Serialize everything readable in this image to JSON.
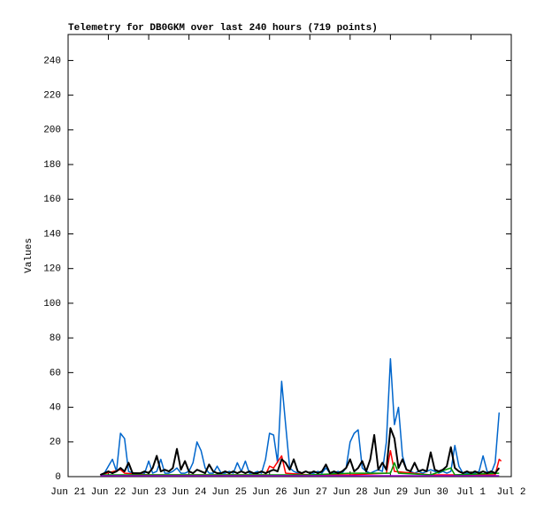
{
  "chart_data": {
    "type": "line",
    "title": "Telemetry for DB0GKM over last 240 hours (719 points)",
    "y_label": "Values",
    "x": [
      0.8,
      0.9,
      1.0,
      1.1,
      1.2,
      1.3,
      1.4,
      1.5,
      1.6,
      1.7,
      1.8,
      1.9,
      2.0,
      2.1,
      2.2,
      2.3,
      2.4,
      2.5,
      2.6,
      2.7,
      2.8,
      2.9,
      3.0,
      3.1,
      3.2,
      3.3,
      3.4,
      3.5,
      3.6,
      3.7,
      3.8,
      3.9,
      4.0,
      4.1,
      4.2,
      4.3,
      4.4,
      4.5,
      4.6,
      4.7,
      4.8,
      4.9,
      5.0,
      5.1,
      5.2,
      5.3,
      5.4,
      5.5,
      5.6,
      5.7,
      5.8,
      5.9,
      6.0,
      6.1,
      6.2,
      6.3,
      6.4,
      6.5,
      6.6,
      6.7,
      6.8,
      6.9,
      7.0,
      7.1,
      7.2,
      7.3,
      7.4,
      7.5,
      7.6,
      7.7,
      7.8,
      7.9,
      8.0,
      8.1,
      8.2,
      8.3,
      8.4,
      8.5,
      8.6,
      8.7,
      8.8,
      8.9,
      9.0,
      9.1,
      9.2,
      9.3,
      9.4,
      9.5,
      9.6,
      9.7,
      9.8,
      9.9,
      10.0,
      10.1,
      10.2,
      10.3,
      10.4,
      10.5,
      10.6,
      10.7
    ],
    "series": [
      {
        "color": "#0066cc",
        "values": [
          1,
          2,
          6,
          10,
          3,
          25,
          22,
          3,
          2,
          2,
          1,
          2,
          9,
          2,
          3,
          10,
          2,
          2,
          3,
          5,
          2,
          2,
          3,
          8,
          20,
          15,
          5,
          2,
          2,
          6,
          2,
          2,
          3,
          2,
          8,
          3,
          9,
          2,
          2,
          3,
          2,
          10,
          25,
          24,
          8,
          55,
          30,
          5,
          3,
          2,
          2,
          3,
          2,
          2,
          3,
          2,
          5,
          2,
          2,
          3,
          2,
          5,
          20,
          25,
          27,
          5,
          3,
          2,
          3,
          4,
          3,
          20,
          68,
          30,
          40,
          12,
          4,
          3,
          2,
          3,
          2,
          3,
          4,
          3,
          2,
          3,
          2,
          3,
          18,
          6,
          2,
          2,
          2,
          2,
          3,
          12,
          3,
          2,
          8,
          37
        ]
      },
      {
        "color": "#ff0000",
        "x": [
          0.8,
          1.3,
          1.4,
          2.0,
          4.9,
          5.0,
          5.1,
          5.3,
          5.4,
          6.0,
          7.0,
          7.9,
          8.0,
          8.1,
          9.0,
          10.0,
          10.6,
          10.7,
          10.75
        ],
        "values": [
          1,
          4,
          2,
          1,
          1,
          6,
          5,
          12,
          2,
          1,
          1,
          2,
          15,
          3,
          1,
          1,
          1,
          10,
          9
        ]
      },
      {
        "color": "#009900",
        "x": [
          0.8,
          2.0,
          4.0,
          6.0,
          7.0,
          8.0,
          8.1,
          8.2,
          9.0,
          9.5,
          9.6,
          10.7
        ],
        "values": [
          1,
          1,
          1,
          1,
          2,
          2,
          8,
          2,
          1,
          5,
          1,
          2
        ]
      },
      {
        "color": "#9900cc",
        "x": [
          0.8,
          10.7
        ],
        "values": [
          0.5,
          0.5
        ]
      },
      {
        "color": "#000000",
        "values": [
          1,
          2,
          3,
          2,
          3,
          5,
          3,
          8,
          2,
          2,
          2,
          3,
          2,
          5,
          12,
          3,
          4,
          3,
          5,
          16,
          4,
          9,
          3,
          2,
          4,
          3,
          2,
          7,
          3,
          2,
          2,
          3,
          2,
          3,
          2,
          3,
          2,
          3,
          2,
          2,
          3,
          2,
          3,
          4,
          3,
          10,
          8,
          4,
          10,
          3,
          2,
          3,
          2,
          3,
          2,
          3,
          7,
          2,
          3,
          2,
          3,
          5,
          10,
          3,
          5,
          9,
          3,
          10,
          24,
          4,
          8,
          4,
          28,
          22,
          5,
          10,
          4,
          3,
          8,
          3,
          4,
          3,
          14,
          4,
          3,
          4,
          6,
          17,
          5,
          3,
          2,
          3,
          2,
          3,
          2,
          3,
          2,
          3,
          2,
          5
        ]
      }
    ],
    "xlim": [
      0,
      11
    ],
    "xticks": [
      {
        "value": 0,
        "label": "Jun 21"
      },
      {
        "value": 1,
        "label": "Jun 22"
      },
      {
        "value": 2,
        "label": "Jun 23"
      },
      {
        "value": 3,
        "label": "Jun 24"
      },
      {
        "value": 4,
        "label": "Jun 25"
      },
      {
        "value": 5,
        "label": "Jun 26"
      },
      {
        "value": 6,
        "label": "Jun 27"
      },
      {
        "value": 7,
        "label": "Jun 28"
      },
      {
        "value": 8,
        "label": "Jun 29"
      },
      {
        "value": 9,
        "label": "Jun 30"
      },
      {
        "value": 10,
        "label": "Jul 1"
      },
      {
        "value": 11,
        "label": "Jul 2"
      }
    ],
    "ylim": [
      0,
      255
    ],
    "yticks": [
      0,
      20,
      40,
      60,
      80,
      100,
      120,
      140,
      160,
      180,
      200,
      220,
      240
    ]
  }
}
